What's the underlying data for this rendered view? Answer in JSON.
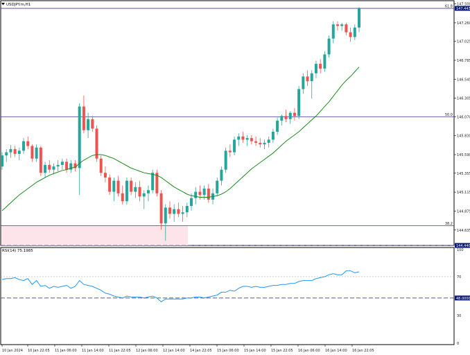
{
  "header": {
    "symbol_title": "USDJPY.m,H1",
    "rsi_title": "RSI(14) 75.1985"
  },
  "colors": {
    "bull": "#26a69a",
    "bear": "#ef5350",
    "ma": "#1a8a1a",
    "rsi": "#2196f3",
    "fib": "#3d3d9e",
    "tag_bg": "#0a1a6e",
    "zone": "#fde4ea"
  },
  "chart_data": [
    {
      "type": "candlestick",
      "ylim": [
        144.44,
        147.54
      ],
      "y_ticks": [
        "147.500",
        "147.260",
        "147.025",
        "146.785",
        "146.545",
        "146.305",
        "146.070",
        "145.830",
        "145.590",
        "145.355",
        "145.115",
        "144.875",
        "144.635",
        "144.400"
      ],
      "x_ticks": [
        "10 Jan 2024",
        "10 Jan 22:05",
        "11 Jan 06:00",
        "11 Jan 14:00",
        "11 Jan 22:05",
        "12 Jan 06:00",
        "12 Jan 14:00",
        "14 Jan 22:05",
        "15 Jan 06:00",
        "15 Jan 14:00",
        "15 Jan 22:05",
        "16 Jan 06:00",
        "16 Jan 14:00",
        "16 Jan 22:05"
      ],
      "price_tag": "147.443",
      "fib_levels": [
        {
          "label": "61.8",
          "value": 147.443
        },
        {
          "label": "50.0",
          "value": 146.07
        },
        {
          "label": "38.2",
          "value": 144.69
        }
      ],
      "support_level": {
        "label": "144.440",
        "value": 144.44
      },
      "ohlc": [
        [
          145.44,
          145.62,
          145.4,
          145.58
        ],
        [
          145.58,
          145.66,
          145.5,
          145.62
        ],
        [
          145.62,
          145.71,
          145.55,
          145.66
        ],
        [
          145.66,
          145.7,
          145.56,
          145.6
        ],
        [
          145.6,
          145.68,
          145.52,
          145.64
        ],
        [
          145.64,
          145.8,
          145.6,
          145.76
        ],
        [
          145.76,
          145.82,
          145.66,
          145.7
        ],
        [
          145.7,
          145.72,
          145.5,
          145.54
        ],
        [
          145.54,
          145.72,
          145.5,
          145.68
        ],
        [
          145.68,
          145.7,
          145.32,
          145.36
        ],
        [
          145.36,
          145.5,
          145.3,
          145.46
        ],
        [
          145.46,
          145.52,
          145.36,
          145.4
        ],
        [
          145.4,
          145.48,
          145.34,
          145.44
        ],
        [
          145.44,
          145.52,
          145.38,
          145.46
        ],
        [
          145.46,
          145.54,
          145.4,
          145.5
        ],
        [
          145.5,
          145.54,
          145.36,
          145.4
        ],
        [
          145.4,
          145.52,
          145.36,
          145.48
        ],
        [
          145.48,
          145.52,
          145.38,
          145.42
        ],
        [
          145.42,
          146.24,
          145.08,
          146.2
        ],
        [
          146.2,
          146.34,
          145.86,
          145.9
        ],
        [
          145.9,
          146.12,
          145.8,
          146.04
        ],
        [
          146.04,
          146.08,
          145.88,
          145.92
        ],
        [
          145.92,
          145.96,
          145.5,
          145.54
        ],
        [
          145.54,
          145.58,
          145.32,
          145.36
        ],
        [
          145.36,
          145.44,
          145.24,
          145.3
        ],
        [
          145.3,
          145.34,
          145.08,
          145.12
        ],
        [
          145.12,
          145.3,
          145.0,
          145.26
        ],
        [
          145.26,
          145.32,
          145.06,
          145.1
        ],
        [
          145.1,
          145.2,
          144.96,
          145.0
        ],
        [
          145.0,
          145.3,
          144.96,
          145.26
        ],
        [
          145.26,
          145.3,
          145.08,
          145.12
        ],
        [
          145.12,
          145.24,
          145.04,
          145.18
        ],
        [
          145.18,
          145.26,
          145.0,
          145.06
        ],
        [
          145.06,
          145.14,
          144.9,
          145.1
        ],
        [
          145.1,
          145.2,
          145.0,
          145.14
        ],
        [
          145.14,
          145.4,
          145.1,
          145.36
        ],
        [
          145.36,
          145.4,
          145.06,
          145.1
        ],
        [
          145.1,
          145.14,
          144.64,
          144.72
        ],
        [
          144.72,
          144.96,
          144.5,
          144.92
        ],
        [
          144.92,
          145.0,
          144.78,
          144.84
        ],
        [
          144.84,
          144.96,
          144.74,
          144.9
        ],
        [
          144.9,
          144.98,
          144.8,
          144.84
        ],
        [
          144.84,
          144.94,
          144.74,
          144.86
        ],
        [
          144.86,
          144.98,
          144.8,
          144.94
        ],
        [
          144.94,
          145.1,
          144.88,
          145.04
        ],
        [
          145.04,
          145.18,
          144.96,
          145.12
        ],
        [
          145.12,
          145.2,
          145.02,
          145.08
        ],
        [
          145.08,
          145.2,
          145.02,
          145.16
        ],
        [
          145.16,
          145.22,
          144.98,
          145.02
        ],
        [
          145.02,
          145.16,
          144.96,
          145.1
        ],
        [
          145.1,
          145.3,
          145.06,
          145.26
        ],
        [
          145.26,
          145.44,
          145.2,
          145.4
        ],
        [
          145.4,
          145.68,
          145.36,
          145.64
        ],
        [
          145.64,
          145.72,
          145.56,
          145.62
        ],
        [
          145.62,
          145.82,
          145.58,
          145.78
        ],
        [
          145.78,
          145.86,
          145.7,
          145.82
        ],
        [
          145.82,
          145.88,
          145.74,
          145.78
        ],
        [
          145.78,
          145.84,
          145.7,
          145.8
        ],
        [
          145.8,
          145.84,
          145.72,
          145.76
        ],
        [
          145.76,
          145.82,
          145.7,
          145.74
        ],
        [
          145.74,
          145.8,
          145.68,
          145.72
        ],
        [
          145.72,
          145.78,
          145.66,
          145.74
        ],
        [
          145.74,
          145.82,
          145.68,
          145.78
        ],
        [
          145.78,
          145.92,
          145.74,
          145.88
        ],
        [
          145.88,
          146.06,
          145.84,
          146.02
        ],
        [
          146.02,
          146.1,
          145.96,
          146.08
        ],
        [
          146.08,
          146.16,
          146.0,
          146.04
        ],
        [
          146.04,
          146.14,
          145.98,
          146.12
        ],
        [
          146.12,
          146.18,
          146.02,
          146.08
        ],
        [
          146.08,
          146.46,
          146.04,
          146.42
        ],
        [
          146.42,
          146.62,
          146.36,
          146.58
        ],
        [
          146.58,
          146.66,
          146.46,
          146.52
        ],
        [
          146.52,
          146.66,
          146.3,
          146.62
        ],
        [
          146.62,
          146.78,
          146.56,
          146.74
        ],
        [
          146.74,
          146.8,
          146.62,
          146.68
        ],
        [
          146.68,
          146.9,
          146.64,
          146.86
        ],
        [
          146.86,
          147.1,
          146.82,
          147.06
        ],
        [
          147.06,
          147.28,
          147.0,
          147.24
        ],
        [
          147.24,
          147.28,
          147.16,
          147.22
        ],
        [
          147.22,
          147.26,
          147.16,
          147.24
        ],
        [
          147.24,
          147.26,
          147.1,
          147.14
        ],
        [
          147.14,
          147.2,
          147.02,
          147.08
        ],
        [
          147.08,
          147.24,
          147.04,
          147.2
        ],
        [
          147.2,
          147.46,
          147.14,
          147.44
        ]
      ],
      "moving_average": [
        144.88,
        144.93,
        144.98,
        145.03,
        145.08,
        145.12,
        145.16,
        145.2,
        145.24,
        145.27,
        145.3,
        145.33,
        145.35,
        145.37,
        145.39,
        145.4,
        145.42,
        145.43,
        145.48,
        145.52,
        145.55,
        145.58,
        145.59,
        145.59,
        145.58,
        145.56,
        145.54,
        145.51,
        145.48,
        145.45,
        145.42,
        145.4,
        145.38,
        145.36,
        145.35,
        145.34,
        145.33,
        145.3,
        145.26,
        145.22,
        145.18,
        145.15,
        145.12,
        145.09,
        145.07,
        145.06,
        145.05,
        145.05,
        145.05,
        145.06,
        145.07,
        145.09,
        145.12,
        145.16,
        145.21,
        145.26,
        145.31,
        145.36,
        145.41,
        145.45,
        145.49,
        145.53,
        145.57,
        145.61,
        145.66,
        145.71,
        145.76,
        145.8,
        145.84,
        145.88,
        145.93,
        145.98,
        146.03,
        146.08,
        146.14,
        146.2,
        146.26,
        146.33,
        146.4,
        146.47,
        146.53,
        146.58,
        146.64,
        146.7
      ]
    },
    {
      "type": "line",
      "name": "RSI(14)",
      "ylim": [
        0,
        100
      ],
      "y_ticks": [
        "100",
        "70",
        "48.0000",
        "30",
        "0"
      ],
      "highlight_level": {
        "label": "48.0000",
        "value": 48
      },
      "upper_level": 70,
      "values": [
        67,
        68,
        68,
        69,
        67,
        66,
        68,
        62,
        66,
        60,
        61,
        58,
        60,
        59,
        60,
        61,
        58,
        60,
        66,
        62,
        61,
        60,
        58,
        56,
        53,
        52,
        50,
        49,
        48,
        50,
        49,
        49,
        49,
        48,
        49,
        50,
        48,
        44,
        47,
        47,
        47,
        47,
        47,
        48,
        48,
        49,
        49,
        48,
        49,
        50,
        51,
        54,
        54,
        56,
        55,
        58,
        60,
        60,
        59,
        60,
        59,
        59,
        60,
        61,
        61,
        62,
        62,
        63,
        63,
        65,
        66,
        66,
        66,
        68,
        69,
        70,
        72,
        73,
        72,
        72,
        76,
        76,
        74,
        75
      ]
    }
  ]
}
